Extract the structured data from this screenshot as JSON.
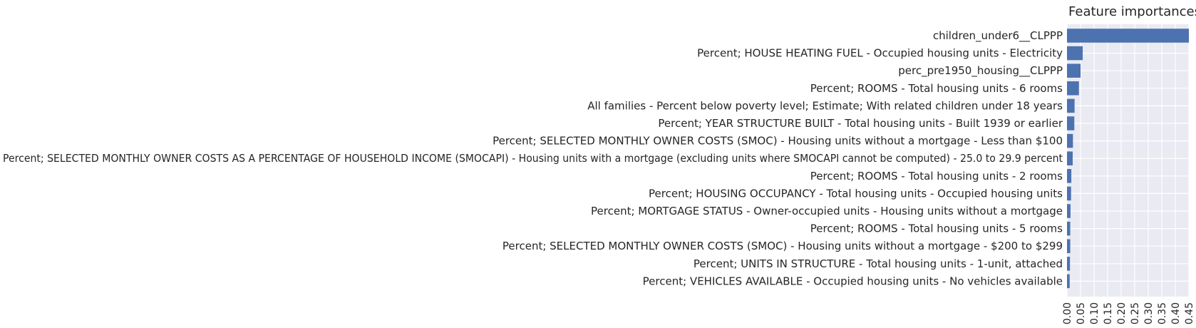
{
  "chart_data": {
    "type": "bar",
    "orientation": "horizontal",
    "title": "Feature importances",
    "xlabel": "",
    "ylabel": "",
    "xlim": [
      0,
      0.45
    ],
    "xticks": [
      "0.00",
      "0.05",
      "0.10",
      "0.15",
      "0.20",
      "0.25",
      "0.30",
      "0.35",
      "0.40",
      "0.45"
    ],
    "grid": true,
    "colors": {
      "bar": "#4c72b0",
      "background": "#eaeaf2",
      "grid": "#ffffff"
    },
    "categories": [
      "children_under6__CLPPP",
      "Percent; HOUSE HEATING FUEL - Occupied housing units - Electricity",
      "perc_pre1950_housing__CLPPP",
      "Percent; ROOMS - Total housing units - 6 rooms",
      "All families  - Percent below poverty level; Estimate; With related children under 18 years",
      "Percent; YEAR STRUCTURE BUILT - Total housing units - Built 1939 or earlier",
      "Percent; SELECTED MONTHLY OWNER COSTS (SMOC) - Housing units without a mortgage - Less than $100",
      "Percent; SELECTED MONTHLY OWNER COSTS AS A PERCENTAGE OF HOUSEHOLD INCOME (SMOCAPI) - Housing units with a mortgage (excluding units where SMOCAPI cannot be computed) - 25.0 to 29.9 percent",
      "Percent; ROOMS - Total housing units - 2 rooms",
      "Percent; HOUSING OCCUPANCY - Total housing units - Occupied housing units",
      "Percent; MORTGAGE STATUS - Owner-occupied units - Housing units without a mortgage",
      "Percent; ROOMS - Total housing units - 5 rooms",
      "Percent; SELECTED MONTHLY OWNER COSTS (SMOC) - Housing units without a mortgage - $200 to $299",
      "Percent; UNITS IN STRUCTURE - Total housing units - 1-unit, attached",
      "Percent; VEHICLES AVAILABLE - Occupied housing units - No vehicles available"
    ],
    "values": [
      0.45,
      0.058,
      0.05,
      0.044,
      0.028,
      0.027,
      0.022,
      0.021,
      0.016,
      0.015,
      0.013,
      0.012,
      0.012,
      0.011,
      0.01
    ]
  }
}
